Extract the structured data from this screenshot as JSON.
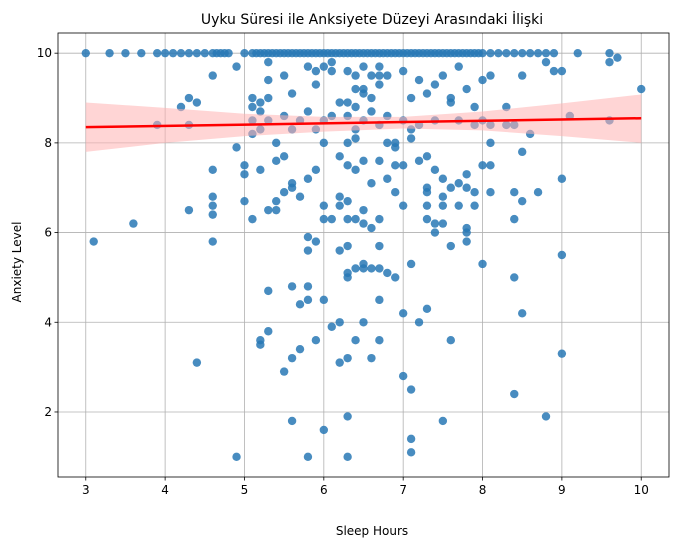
{
  "chart_data": {
    "type": "scatter",
    "title": "Uyku Süresi ile Anksiyete Düzeyi Arasındaki İlişki",
    "xlabel": "Sleep Hours",
    "ylabel": "Anxiety Level",
    "xlim": [
      2.65,
      10.35
    ],
    "ylim": [
      0.55,
      10.45
    ],
    "xticks": [
      "3",
      "4",
      "5",
      "6",
      "7",
      "8",
      "9",
      "10"
    ],
    "yticks": [
      "2",
      "4",
      "6",
      "8",
      "10"
    ],
    "grid": true,
    "point_color": "#2878b5",
    "regression_color": "#ff0000",
    "band_color": "#ffb3b3",
    "regression": {
      "x": [
        3,
        10
      ],
      "y": [
        8.35,
        8.55
      ]
    },
    "confidence_band": {
      "x": [
        3,
        4,
        5,
        6,
        7,
        8,
        9,
        10
      ],
      "lower": [
        7.8,
        8.0,
        8.15,
        8.25,
        8.32,
        8.28,
        8.15,
        8.0
      ],
      "upper": [
        8.9,
        8.78,
        8.65,
        8.58,
        8.58,
        8.7,
        8.88,
        9.08
      ]
    },
    "points": [
      [
        3.0,
        10
      ],
      [
        3.3,
        10
      ],
      [
        3.5,
        10
      ],
      [
        3.7,
        10
      ],
      [
        3.9,
        10
      ],
      [
        4.0,
        10
      ],
      [
        4.1,
        10
      ],
      [
        4.2,
        10
      ],
      [
        4.3,
        10
      ],
      [
        4.4,
        10
      ],
      [
        4.5,
        10
      ],
      [
        4.6,
        10
      ],
      [
        4.7,
        10
      ],
      [
        4.8,
        10
      ],
      [
        4.65,
        10
      ],
      [
        4.75,
        10
      ],
      [
        5.0,
        10
      ],
      [
        5.1,
        10
      ],
      [
        5.15,
        10
      ],
      [
        5.2,
        10
      ],
      [
        5.25,
        10
      ],
      [
        5.3,
        10
      ],
      [
        5.35,
        10
      ],
      [
        5.4,
        10
      ],
      [
        5.45,
        10
      ],
      [
        5.5,
        10
      ],
      [
        5.55,
        10
      ],
      [
        5.6,
        10
      ],
      [
        5.65,
        10
      ],
      [
        5.7,
        10
      ],
      [
        5.75,
        10
      ],
      [
        5.8,
        10
      ],
      [
        5.85,
        10
      ],
      [
        5.9,
        10
      ],
      [
        5.95,
        10
      ],
      [
        6.0,
        10
      ],
      [
        6.05,
        10
      ],
      [
        6.1,
        10
      ],
      [
        6.15,
        10
      ],
      [
        6.2,
        10
      ],
      [
        6.25,
        10
      ],
      [
        6.3,
        10
      ],
      [
        6.35,
        10
      ],
      [
        6.4,
        10
      ],
      [
        6.45,
        10
      ],
      [
        6.5,
        10
      ],
      [
        6.55,
        10
      ],
      [
        6.6,
        10
      ],
      [
        6.65,
        10
      ],
      [
        6.7,
        10
      ],
      [
        6.75,
        10
      ],
      [
        6.8,
        10
      ],
      [
        6.85,
        10
      ],
      [
        6.9,
        10
      ],
      [
        6.95,
        10
      ],
      [
        7.0,
        10
      ],
      [
        7.05,
        10
      ],
      [
        7.1,
        10
      ],
      [
        7.15,
        10
      ],
      [
        7.2,
        10
      ],
      [
        7.25,
        10
      ],
      [
        7.3,
        10
      ],
      [
        7.35,
        10
      ],
      [
        7.4,
        10
      ],
      [
        7.45,
        10
      ],
      [
        7.5,
        10
      ],
      [
        7.55,
        10
      ],
      [
        7.6,
        10
      ],
      [
        7.65,
        10
      ],
      [
        7.7,
        10
      ],
      [
        7.75,
        10
      ],
      [
        7.8,
        10
      ],
      [
        7.85,
        10
      ],
      [
        7.9,
        10
      ],
      [
        7.95,
        10
      ],
      [
        8.0,
        10
      ],
      [
        8.1,
        10
      ],
      [
        8.2,
        10
      ],
      [
        8.3,
        10
      ],
      [
        8.4,
        10
      ],
      [
        8.5,
        10
      ],
      [
        8.6,
        10
      ],
      [
        8.7,
        10
      ],
      [
        8.8,
        10
      ],
      [
        8.9,
        10
      ],
      [
        9.2,
        10
      ],
      [
        9.6,
        10
      ],
      [
        3.1,
        5.8
      ],
      [
        3.6,
        6.2
      ],
      [
        3.9,
        8.4
      ],
      [
        4.2,
        8.8
      ],
      [
        4.3,
        9.0
      ],
      [
        4.3,
        8.4
      ],
      [
        4.4,
        8.9
      ],
      [
        4.3,
        6.5
      ],
      [
        4.4,
        3.1
      ],
      [
        4.6,
        9.5
      ],
      [
        4.6,
        7.4
      ],
      [
        4.6,
        6.8
      ],
      [
        4.6,
        6.6
      ],
      [
        4.6,
        6.4
      ],
      [
        4.6,
        5.8
      ],
      [
        4.9,
        9.7
      ],
      [
        4.9,
        7.9
      ],
      [
        4.9,
        1.0
      ],
      [
        5.0,
        7.5
      ],
      [
        5.0,
        7.3
      ],
      [
        5.0,
        6.7
      ],
      [
        5.1,
        9.0
      ],
      [
        5.1,
        8.8
      ],
      [
        5.1,
        8.5
      ],
      [
        5.1,
        8.2
      ],
      [
        5.1,
        6.3
      ],
      [
        5.2,
        8.9
      ],
      [
        5.2,
        8.7
      ],
      [
        5.2,
        8.3
      ],
      [
        5.2,
        7.4
      ],
      [
        5.2,
        3.6
      ],
      [
        5.2,
        3.5
      ],
      [
        5.3,
        9.8
      ],
      [
        5.3,
        9.4
      ],
      [
        5.3,
        9.0
      ],
      [
        5.3,
        8.5
      ],
      [
        5.3,
        6.5
      ],
      [
        5.3,
        4.7
      ],
      [
        5.3,
        3.8
      ],
      [
        5.4,
        8.0
      ],
      [
        5.4,
        7.6
      ],
      [
        5.4,
        6.7
      ],
      [
        5.4,
        6.5
      ],
      [
        5.5,
        9.5
      ],
      [
        5.5,
        8.6
      ],
      [
        5.5,
        7.7
      ],
      [
        5.5,
        6.9
      ],
      [
        5.5,
        2.9
      ],
      [
        5.6,
        9.1
      ],
      [
        5.6,
        8.3
      ],
      [
        5.6,
        7.1
      ],
      [
        5.6,
        7.0
      ],
      [
        5.6,
        4.8
      ],
      [
        5.6,
        3.2
      ],
      [
        5.6,
        1.8
      ],
      [
        5.7,
        8.5
      ],
      [
        5.7,
        6.8
      ],
      [
        5.7,
        4.4
      ],
      [
        5.7,
        3.4
      ],
      [
        5.8,
        9.7
      ],
      [
        5.8,
        8.7
      ],
      [
        5.8,
        7.2
      ],
      [
        5.8,
        5.9
      ],
      [
        5.8,
        5.6
      ],
      [
        5.8,
        4.8
      ],
      [
        5.8,
        4.5
      ],
      [
        5.8,
        1.0
      ],
      [
        5.9,
        9.6
      ],
      [
        5.9,
        9.3
      ],
      [
        5.9,
        8.3
      ],
      [
        5.9,
        7.4
      ],
      [
        5.9,
        5.8
      ],
      [
        5.9,
        3.6
      ],
      [
        6.0,
        9.7
      ],
      [
        6.0,
        8.5
      ],
      [
        6.0,
        8.0
      ],
      [
        6.0,
        6.6
      ],
      [
        6.0,
        6.3
      ],
      [
        6.0,
        4.5
      ],
      [
        6.0,
        1.6
      ],
      [
        6.1,
        9.8
      ],
      [
        6.1,
        9.6
      ],
      [
        6.1,
        8.6
      ],
      [
        6.1,
        6.3
      ],
      [
        6.1,
        3.9
      ],
      [
        6.2,
        8.9
      ],
      [
        6.2,
        7.7
      ],
      [
        6.2,
        6.8
      ],
      [
        6.2,
        6.6
      ],
      [
        6.2,
        5.6
      ],
      [
        6.2,
        4.0
      ],
      [
        6.2,
        3.1
      ],
      [
        6.3,
        9.6
      ],
      [
        6.3,
        8.9
      ],
      [
        6.3,
        8.6
      ],
      [
        6.3,
        8.0
      ],
      [
        6.3,
        7.5
      ],
      [
        6.3,
        6.7
      ],
      [
        6.3,
        6.3
      ],
      [
        6.3,
        5.7
      ],
      [
        6.3,
        5.1
      ],
      [
        6.3,
        5.0
      ],
      [
        6.3,
        3.2
      ],
      [
        6.3,
        1.9
      ],
      [
        6.3,
        1.0
      ],
      [
        6.4,
        9.5
      ],
      [
        6.4,
        9.2
      ],
      [
        6.4,
        8.8
      ],
      [
        6.4,
        8.3
      ],
      [
        6.4,
        8.1
      ],
      [
        6.4,
        7.4
      ],
      [
        6.4,
        6.3
      ],
      [
        6.4,
        5.2
      ],
      [
        6.4,
        3.6
      ],
      [
        6.5,
        9.7
      ],
      [
        6.5,
        9.2
      ],
      [
        6.5,
        9.1
      ],
      [
        6.5,
        8.5
      ],
      [
        6.5,
        7.6
      ],
      [
        6.5,
        6.5
      ],
      [
        6.5,
        6.2
      ],
      [
        6.5,
        5.3
      ],
      [
        6.5,
        5.2
      ],
      [
        6.5,
        4.0
      ],
      [
        6.6,
        9.5
      ],
      [
        6.6,
        9.0
      ],
      [
        6.6,
        8.7
      ],
      [
        6.6,
        7.1
      ],
      [
        6.6,
        6.1
      ],
      [
        6.6,
        5.2
      ],
      [
        6.6,
        3.2
      ],
      [
        6.7,
        9.7
      ],
      [
        6.7,
        9.5
      ],
      [
        6.7,
        9.3
      ],
      [
        6.7,
        8.4
      ],
      [
        6.7,
        7.6
      ],
      [
        6.7,
        6.3
      ],
      [
        6.7,
        5.7
      ],
      [
        6.7,
        5.2
      ],
      [
        6.7,
        4.5
      ],
      [
        6.7,
        3.6
      ],
      [
        6.8,
        9.5
      ],
      [
        6.8,
        8.6
      ],
      [
        6.8,
        8.0
      ],
      [
        6.8,
        7.2
      ],
      [
        6.8,
        5.1
      ],
      [
        6.9,
        8.0
      ],
      [
        6.9,
        7.9
      ],
      [
        6.9,
        7.5
      ],
      [
        6.9,
        6.9
      ],
      [
        6.9,
        5.0
      ],
      [
        7.0,
        9.6
      ],
      [
        7.0,
        8.5
      ],
      [
        7.0,
        7.5
      ],
      [
        7.0,
        6.6
      ],
      [
        7.0,
        4.2
      ],
      [
        7.0,
        2.8
      ],
      [
        7.1,
        9.0
      ],
      [
        7.1,
        8.3
      ],
      [
        7.1,
        8.1
      ],
      [
        7.1,
        5.3
      ],
      [
        7.1,
        2.5
      ],
      [
        7.1,
        1.4
      ],
      [
        7.1,
        1.1
      ],
      [
        7.2,
        9.4
      ],
      [
        7.2,
        8.4
      ],
      [
        7.2,
        7.6
      ],
      [
        7.2,
        4.0
      ],
      [
        7.3,
        9.1
      ],
      [
        7.3,
        7.7
      ],
      [
        7.3,
        7.0
      ],
      [
        7.3,
        6.9
      ],
      [
        7.3,
        6.6
      ],
      [
        7.3,
        6.3
      ],
      [
        7.3,
        4.3
      ],
      [
        7.4,
        9.3
      ],
      [
        7.4,
        8.5
      ],
      [
        7.4,
        7.4
      ],
      [
        7.4,
        6.2
      ],
      [
        7.4,
        6.0
      ],
      [
        7.5,
        9.5
      ],
      [
        7.5,
        7.2
      ],
      [
        7.5,
        6.8
      ],
      [
        7.5,
        6.6
      ],
      [
        7.5,
        6.2
      ],
      [
        7.5,
        1.8
      ],
      [
        7.6,
        9.0
      ],
      [
        7.6,
        8.9
      ],
      [
        7.6,
        7.0
      ],
      [
        7.6,
        5.7
      ],
      [
        7.6,
        3.6
      ],
      [
        7.7,
        9.7
      ],
      [
        7.7,
        8.5
      ],
      [
        7.7,
        7.1
      ],
      [
        7.7,
        6.6
      ],
      [
        7.8,
        9.2
      ],
      [
        7.8,
        7.3
      ],
      [
        7.8,
        7.0
      ],
      [
        7.8,
        6.1
      ],
      [
        7.8,
        6.0
      ],
      [
        7.8,
        5.8
      ],
      [
        7.9,
        8.8
      ],
      [
        7.9,
        8.4
      ],
      [
        7.9,
        6.9
      ],
      [
        7.9,
        6.6
      ],
      [
        8.0,
        9.4
      ],
      [
        8.0,
        8.5
      ],
      [
        8.0,
        7.5
      ],
      [
        8.0,
        5.3
      ],
      [
        8.1,
        9.5
      ],
      [
        8.1,
        8.4
      ],
      [
        8.1,
        8.0
      ],
      [
        8.1,
        7.5
      ],
      [
        8.1,
        6.9
      ],
      [
        8.3,
        8.8
      ],
      [
        8.3,
        8.4
      ],
      [
        8.4,
        8.4
      ],
      [
        8.4,
        6.9
      ],
      [
        8.4,
        6.3
      ],
      [
        8.4,
        5.0
      ],
      [
        8.4,
        2.4
      ],
      [
        8.5,
        9.5
      ],
      [
        8.5,
        7.8
      ],
      [
        8.5,
        6.7
      ],
      [
        8.5,
        4.2
      ],
      [
        8.6,
        8.2
      ],
      [
        8.7,
        6.9
      ],
      [
        8.8,
        1.9
      ],
      [
        8.8,
        9.8
      ],
      [
        8.9,
        9.6
      ],
      [
        9.0,
        9.6
      ],
      [
        9.0,
        7.2
      ],
      [
        9.0,
        5.5
      ],
      [
        9.0,
        3.3
      ],
      [
        9.1,
        8.6
      ],
      [
        9.6,
        9.8
      ],
      [
        9.6,
        8.5
      ],
      [
        9.7,
        9.9
      ],
      [
        10.0,
        9.2
      ]
    ]
  }
}
